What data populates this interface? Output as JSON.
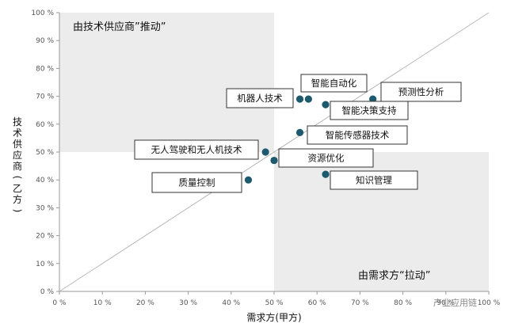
{
  "chart_data": {
    "type": "scatter",
    "xlabel": "需求方(甲方)",
    "ylabel": "技术供应商(乙方)",
    "xlim": [
      0,
      100
    ],
    "ylim": [
      0,
      100
    ],
    "x_ticks": [
      "0 %",
      "10 %",
      "20 %",
      "30 %",
      "40 %",
      "50 %",
      "60 %",
      "70 %",
      "80 %",
      "90 %",
      "100 %"
    ],
    "y_ticks": [
      "0 %",
      "10 %",
      "20 %",
      "30 %",
      "40 %",
      "50 %",
      "60 %",
      "70 %",
      "80 %",
      "90 %",
      "100 %"
    ],
    "grid": false,
    "diagonal_reference_line": true,
    "region_labels": [
      {
        "text": "由技术供应商”推动”",
        "position": "top-left"
      },
      {
        "text": "由需求方“拉动”",
        "position": "bottom-right"
      }
    ],
    "points": [
      {
        "label": "智能自动化",
        "x": 58,
        "y": 69
      },
      {
        "label": "机器人技术",
        "x": 56,
        "y": 69
      },
      {
        "label": "预测性分析",
        "x": 73,
        "y": 69
      },
      {
        "label": "智能决策支持",
        "x": 62,
        "y": 67
      },
      {
        "label": "智能传感器技术",
        "x": 56,
        "y": 57
      },
      {
        "label": "无人驾驶和无人机技术",
        "x": 48,
        "y": 50
      },
      {
        "label": "资源优化",
        "x": 50,
        "y": 47
      },
      {
        "label": "知识管理",
        "x": 62,
        "y": 42
      },
      {
        "label": "质量控制",
        "x": 44,
        "y": 40
      }
    ],
    "colors": {
      "point": "#1d5a6e",
      "shaded_region": "#ececec",
      "diagonal": "#b8b8b8",
      "axis": "#999999"
    }
  },
  "watermark": {
    "text": "产业应用链"
  }
}
